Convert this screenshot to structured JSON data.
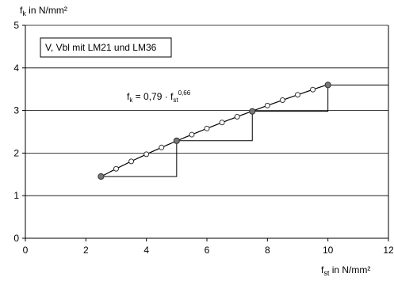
{
  "chart_data": {
    "type": "line",
    "title": "",
    "legend_label": "V, Vbl mit LM21 und LM36",
    "y_label": {
      "main": "f",
      "sub": "k",
      "unit": " in N/mm²"
    },
    "x_label": {
      "main": "f",
      "sub": "st",
      "unit": " in N/mm²"
    },
    "formula": {
      "lhs": "f",
      "lhs_sub": "k",
      "eq": " = 0,79 · f",
      "rhs_sub": "st",
      "exp": "0,66"
    },
    "xlim": [
      0,
      12
    ],
    "ylim": [
      0,
      5
    ],
    "x_ticks": [
      0,
      2,
      4,
      6,
      8,
      10,
      12
    ],
    "y_ticks": [
      0,
      1,
      2,
      3,
      4,
      5
    ],
    "grid": {
      "horizontal": true,
      "vertical": false,
      "color": "#000000"
    },
    "curve": {
      "formula_k": 0.79,
      "formula_exponent": 0.66,
      "x_range": [
        2.5,
        10
      ],
      "color": "#000000"
    },
    "open_markers": {
      "x": [
        3.0,
        3.5,
        4.0,
        4.5,
        5.5,
        6.0,
        6.5,
        7.0,
        8.0,
        8.5,
        9.0,
        9.5
      ],
      "fill": "#ffffff",
      "stroke": "#333333"
    },
    "filled_markers": {
      "x": [
        2.5,
        5.0,
        7.5,
        10.0
      ],
      "y": [
        1.45,
        2.29,
        2.98,
        3.6
      ],
      "fill": "#777777",
      "stroke": "#333333"
    },
    "step_line": {
      "points": [
        [
          2.5,
          1.45
        ],
        [
          5.0,
          1.45
        ],
        [
          5.0,
          2.29
        ],
        [
          7.5,
          2.29
        ],
        [
          7.5,
          2.98
        ],
        [
          10.0,
          2.98
        ],
        [
          10.0,
          3.6
        ],
        [
          12.0,
          3.6
        ]
      ],
      "color": "#000000"
    }
  }
}
